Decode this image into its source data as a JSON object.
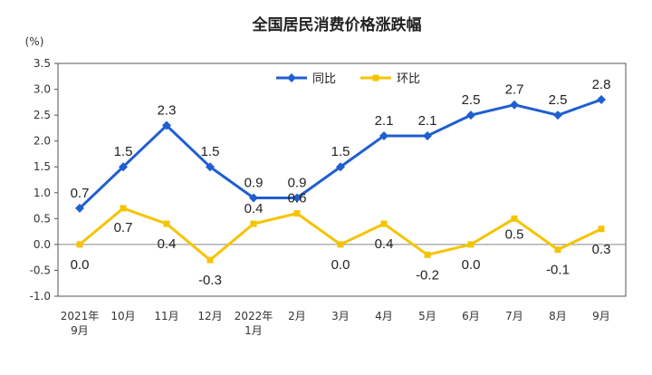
{
  "chart_data": {
    "type": "line",
    "title": "全国居民消费价格涨跌幅",
    "unit": "(%)",
    "categories": [
      "2021年9月",
      "10月",
      "11月",
      "12月",
      "2022年1月",
      "2月",
      "3月",
      "4月",
      "5月",
      "6月",
      "7月",
      "8月",
      "9月"
    ],
    "category_lines": [
      [
        "2021年",
        "9月"
      ],
      [
        "10月"
      ],
      [
        "11月"
      ],
      [
        "12月"
      ],
      [
        "2022年",
        "1月"
      ],
      [
        "2月"
      ],
      [
        "3月"
      ],
      [
        "4月"
      ],
      [
        "5月"
      ],
      [
        "6月"
      ],
      [
        "7月"
      ],
      [
        "8月"
      ],
      [
        "9月"
      ]
    ],
    "series": [
      {
        "name": "同比",
        "color": "#1f5fcf",
        "marker": "diamond",
        "values": [
          0.7,
          1.5,
          2.3,
          1.5,
          0.9,
          0.9,
          1.5,
          2.1,
          2.1,
          2.5,
          2.7,
          2.5,
          2.8
        ],
        "labels": [
          "0.7",
          "1.5",
          "2.3",
          "1.5",
          "0.9",
          "0.9",
          "1.5",
          "2.1",
          "2.1",
          "2.5",
          "2.7",
          "2.5",
          "2.8"
        ]
      },
      {
        "name": "环比",
        "color": "#f5c400",
        "marker": "square",
        "values": [
          0.0,
          0.7,
          0.4,
          -0.3,
          0.4,
          0.6,
          0.0,
          0.4,
          -0.2,
          0.0,
          0.5,
          -0.1,
          0.3
        ],
        "labels": [
          "0.0",
          "0.7",
          "0.4",
          "-0.3",
          "0.4",
          "0.6",
          "0.0",
          "0.4",
          "-0.2",
          "0.0",
          "0.5",
          "-0.1",
          "0.3"
        ]
      }
    ],
    "y_ticks": [
      "-1.0",
      "-0.5",
      "0.0",
      "0.5",
      "1.0",
      "1.5",
      "2.0",
      "2.5",
      "3.0",
      "3.5"
    ],
    "ylim": [
      -1.0,
      3.5
    ],
    "grid": false,
    "legend_position": "top-center"
  }
}
